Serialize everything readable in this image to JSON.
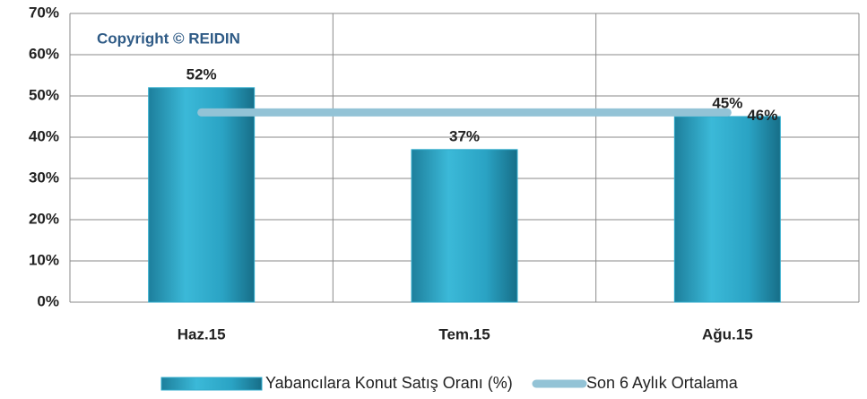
{
  "chart_data": {
    "type": "bar",
    "annotation": "Copyright © REIDIN",
    "categories": [
      "Haz.15",
      "Tem.15",
      "Ağu.15"
    ],
    "series": [
      {
        "name": "Yabancılara Konut Satış Oranı (%)",
        "type": "bar",
        "color": "#2eaacb",
        "values": [
          52,
          37,
          45
        ],
        "value_labels": [
          "52%",
          "37%",
          "45%"
        ]
      },
      {
        "name": "Son 6 Aylık Ortalama",
        "type": "line",
        "color": "#93c3d6",
        "values": [
          46,
          46,
          46
        ],
        "value_labels": [
          null,
          null,
          "46%"
        ]
      }
    ],
    "ylim": [
      0,
      70
    ],
    "yticks": [
      {
        "value": 0,
        "label": "0%"
      },
      {
        "value": 10,
        "label": "10%"
      },
      {
        "value": 20,
        "label": "20%"
      },
      {
        "value": 30,
        "label": "30%"
      },
      {
        "value": 40,
        "label": "40%"
      },
      {
        "value": 50,
        "label": "50%"
      },
      {
        "value": 60,
        "label": "60%"
      },
      {
        "value": 70,
        "label": "70%"
      }
    ],
    "grid": true
  }
}
